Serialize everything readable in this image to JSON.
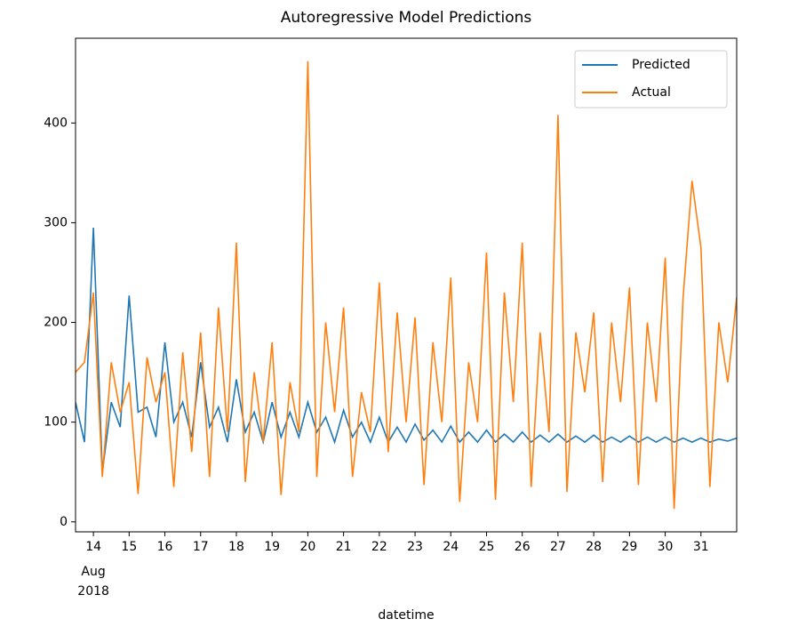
{
  "chart_data": {
    "type": "line",
    "title": "Autoregressive Model Predictions",
    "xlabel": "datetime",
    "x": [
      13.5,
      13.75,
      14,
      14.25,
      14.5,
      14.75,
      15,
      15.25,
      15.5,
      15.75,
      16,
      16.25,
      16.5,
      16.75,
      17,
      17.25,
      17.5,
      17.75,
      18,
      18.25,
      18.5,
      18.75,
      19,
      19.25,
      19.5,
      19.75,
      20,
      20.25,
      20.5,
      20.75,
      21,
      21.25,
      21.5,
      21.75,
      22,
      22.25,
      22.5,
      22.75,
      23,
      23.25,
      23.5,
      23.75,
      24,
      24.25,
      24.5,
      24.75,
      25,
      25.25,
      25.5,
      25.75,
      26,
      26.25,
      26.5,
      26.75,
      27,
      27.25,
      27.5,
      27.75,
      28,
      28.25,
      28.5,
      28.75,
      29,
      29.25,
      29.5,
      29.75,
      30,
      30.25,
      30.5,
      30.75,
      31,
      31.25,
      31.5,
      31.75,
      32
    ],
    "series": [
      {
        "name": "Predicted",
        "color": "#1f77b4",
        "values": [
          120,
          80,
          295,
          50,
          120,
          95,
          227,
          110,
          115,
          85,
          180,
          100,
          120,
          85,
          160,
          95,
          115,
          80,
          143,
          90,
          110,
          80,
          120,
          85,
          110,
          85,
          120,
          90,
          105,
          80,
          112,
          85,
          100,
          80,
          105,
          80,
          95,
          80,
          98,
          82,
          92,
          80,
          96,
          80,
          90,
          80,
          92,
          80,
          88,
          80,
          90,
          80,
          87,
          80,
          88,
          80,
          86,
          80,
          87,
          80,
          85,
          80,
          86,
          80,
          85,
          80,
          85,
          80,
          84,
          80,
          84,
          80,
          83,
          81,
          84
        ]
      },
      {
        "name": "Actual",
        "color": "#ff7f0e",
        "values": [
          150,
          160,
          230,
          45,
          160,
          110,
          140,
          28,
          165,
          120,
          150,
          35,
          170,
          70,
          190,
          45,
          215,
          90,
          280,
          40,
          150,
          80,
          180,
          27,
          140,
          90,
          462,
          45,
          200,
          110,
          215,
          45,
          130,
          90,
          240,
          70,
          210,
          100,
          205,
          37,
          180,
          100,
          245,
          20,
          160,
          100,
          270,
          22,
          230,
          120,
          280,
          35,
          190,
          90,
          408,
          30,
          190,
          130,
          210,
          40,
          200,
          120,
          235,
          37,
          200,
          120,
          265,
          13,
          225,
          342,
          275,
          35,
          200,
          140,
          225
        ]
      }
    ],
    "xlim": [
      13.5,
      32.0
    ],
    "xticks": [
      14,
      15,
      16,
      17,
      18,
      19,
      20,
      21,
      22,
      23,
      24,
      25,
      26,
      27,
      28,
      29,
      30,
      31
    ],
    "x_tick_sublabels": [
      "Aug",
      "2018"
    ],
    "ylim": [
      -10,
      485
    ],
    "yticks": [
      0,
      100,
      200,
      300,
      400
    ],
    "legend": "upper right"
  }
}
